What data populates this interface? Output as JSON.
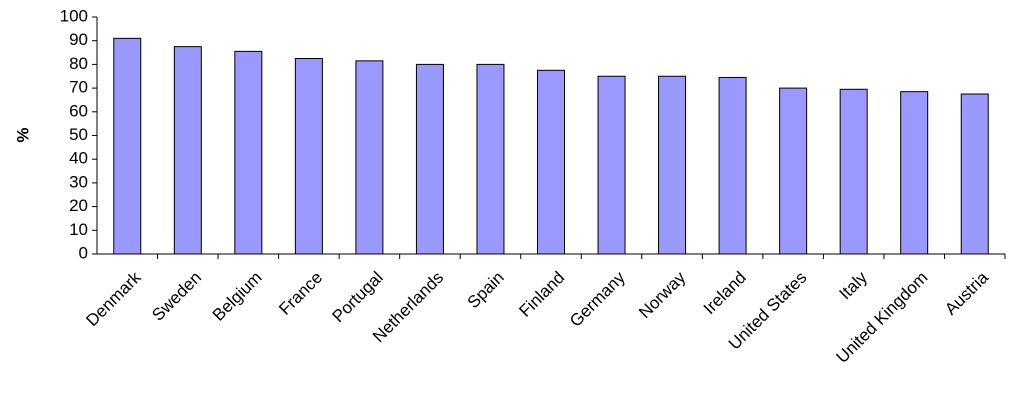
{
  "chart_data": {
    "type": "bar",
    "y_label": "%",
    "categories": [
      "Denmark",
      "Sweden",
      "Belgium",
      "France",
      "Portugal",
      "Netherlands",
      "Spain",
      "Finland",
      "Germany",
      "Norway",
      "Ireland",
      "United States",
      "Italy",
      "United Kingdom",
      "Austria"
    ],
    "values": [
      91,
      87.5,
      85.5,
      82.5,
      81.5,
      80,
      80,
      77.5,
      75,
      75,
      74.5,
      70,
      69.5,
      68.5,
      67.5
    ],
    "color": "#9999ff",
    "ylim": [
      0,
      100
    ],
    "yticks": [
      0,
      10,
      20,
      30,
      40,
      50,
      60,
      70,
      80,
      90,
      100
    ],
    "grid": false
  }
}
